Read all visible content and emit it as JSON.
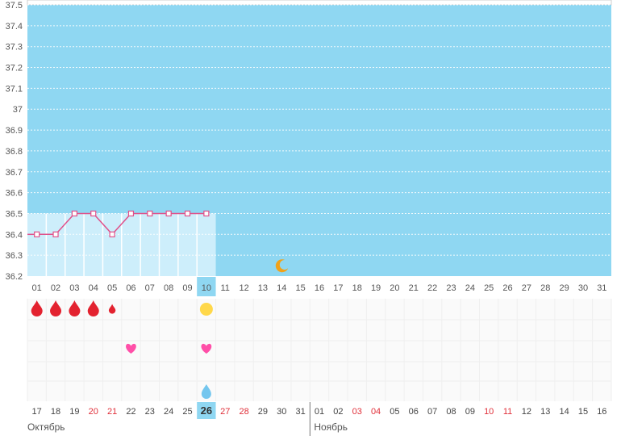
{
  "chart_data": {
    "type": "line",
    "ylim": [
      36.2,
      37.5
    ],
    "y_ticks": [
      "36.2",
      "36.3",
      "36.4",
      "36.5",
      "36.6",
      "36.7",
      "36.8",
      "36.9",
      "37",
      "37.1",
      "37.2",
      "37.3",
      "37.4",
      "37.5"
    ],
    "x_day_labels": [
      "01",
      "02",
      "03",
      "04",
      "05",
      "06",
      "07",
      "08",
      "09",
      "10",
      "11",
      "12",
      "13",
      "14",
      "15",
      "16",
      "17",
      "18",
      "19",
      "20",
      "21",
      "22",
      "23",
      "24",
      "25",
      "26",
      "27",
      "28",
      "29",
      "30",
      "31"
    ],
    "series": [
      {
        "values": [
          36.4,
          36.4,
          36.5,
          36.5,
          36.4,
          36.5,
          36.5,
          36.5,
          36.5,
          36.5
        ]
      }
    ],
    "current_day": "10",
    "grid": true,
    "colors": {
      "background": "#8fd7f2",
      "recorded_area": "#cdeefb",
      "line": "#e0508a",
      "marker_fill": "#ffffff"
    }
  },
  "symptoms": {
    "bleeding_days": [
      "01",
      "02",
      "03",
      "04"
    ],
    "light_bleeding_days": [
      "05"
    ],
    "heart_days": [
      "06",
      "10"
    ],
    "sun_days": [
      "10"
    ],
    "drop_days": [
      "10"
    ],
    "moon_days": [
      "14"
    ],
    "colors": {
      "blood": "#e3222f",
      "heart": "#ff4fa8",
      "sun": "#ffd84a",
      "drop": "#74c6ee",
      "moon": "#f0a21a"
    }
  },
  "calendar": {
    "dates": [
      "17",
      "18",
      "19",
      "20",
      "21",
      "22",
      "23",
      "24",
      "25",
      "26",
      "27",
      "28",
      "29",
      "30",
      "31",
      "01",
      "02",
      "03",
      "04",
      "05",
      "06",
      "07",
      "08",
      "09",
      "10",
      "11",
      "12",
      "13",
      "14",
      "15",
      "16"
    ],
    "weekend_dates_idx": [
      3,
      4,
      10,
      11,
      17,
      18,
      24,
      25
    ],
    "today_idx": 9,
    "months": [
      {
        "label": "Октябрь"
      },
      {
        "label": "Ноябрь"
      }
    ]
  }
}
